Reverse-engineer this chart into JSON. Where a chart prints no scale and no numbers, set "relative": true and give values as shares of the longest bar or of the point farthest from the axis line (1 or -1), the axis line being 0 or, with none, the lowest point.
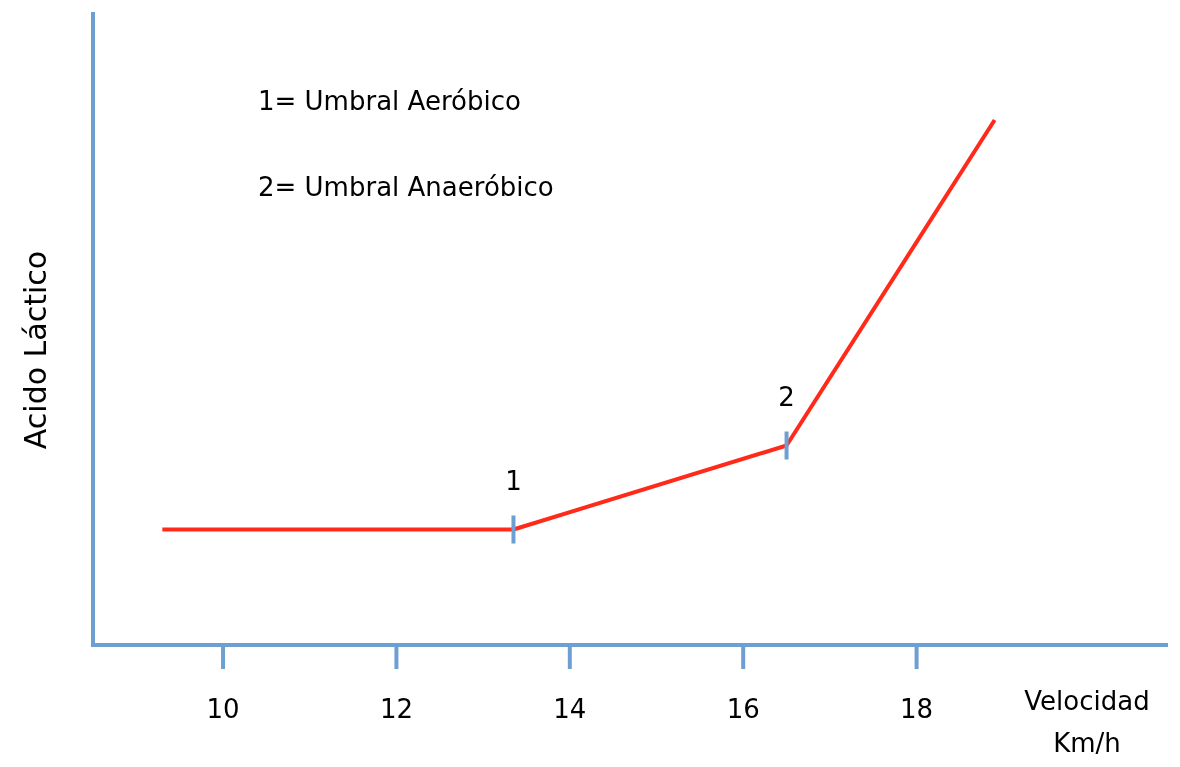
{
  "chart_data": {
    "type": "line",
    "xlabel": "Velocidad Km/h",
    "ylabel": "Acido Láctico",
    "relative": true,
    "xlim": [
      8.5,
      20.9
    ],
    "xticks": [
      10,
      12,
      14,
      16,
      18
    ],
    "x": [
      9.3,
      13.35,
      16.5,
      18.9
    ],
    "series": [
      {
        "color": "#ff2a1a",
        "values": [
          0.22,
          0.22,
          0.38,
          1
        ]
      }
    ],
    "annotations": [
      "1= Umbral Aeróbico",
      "2= Umbral Anaeróbico",
      {
        "text": "1",
        "x": 13.35,
        "y": 0.22
      },
      {
        "text": "2",
        "x": 16.5,
        "y": 0.38
      }
    ],
    "marker": "none"
  }
}
